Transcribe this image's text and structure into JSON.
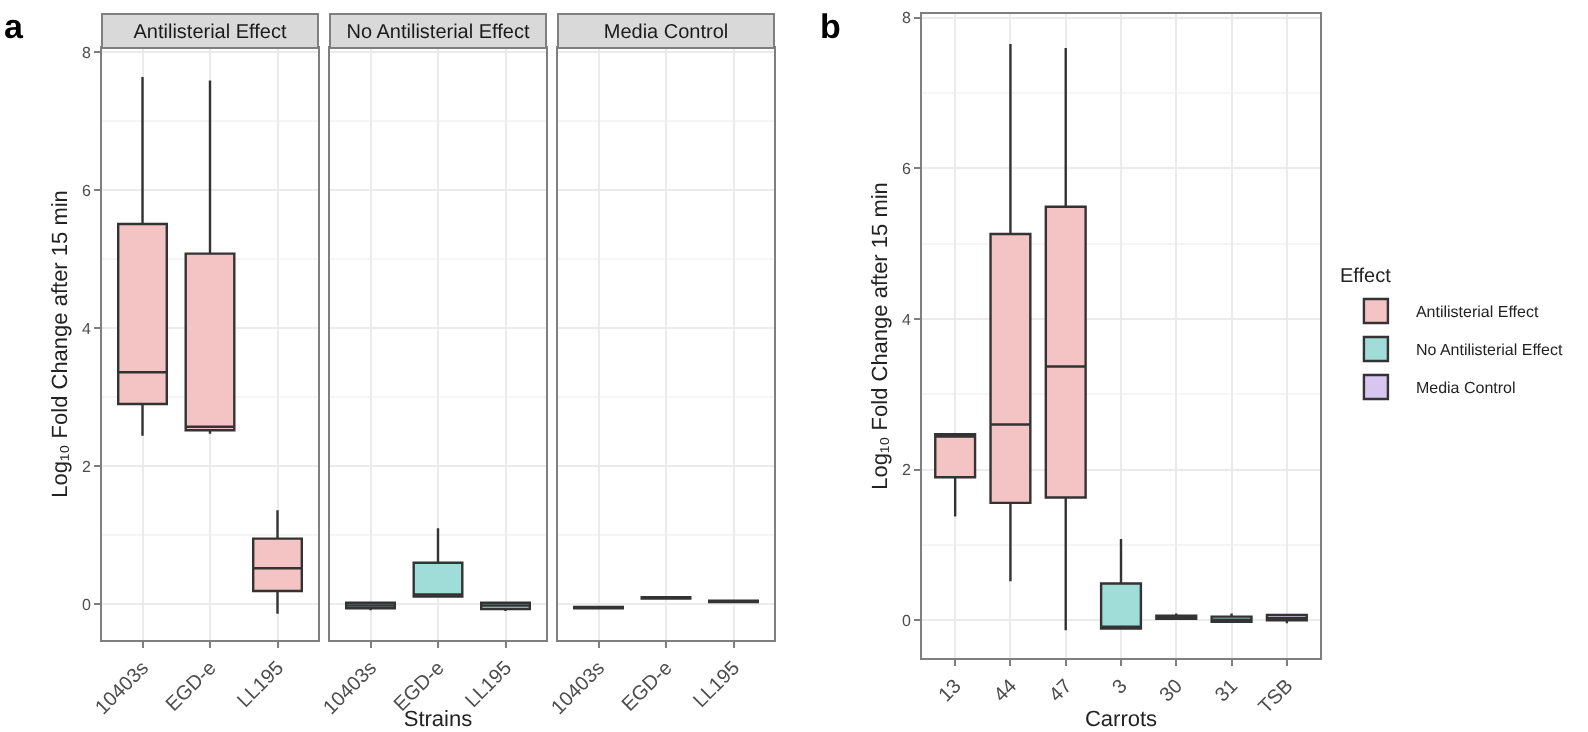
{
  "chart_data": [
    {
      "type": "box",
      "title": "Antilisterial Effect",
      "ylabel": "Log₁₀ Fold Change after 15 min",
      "annotations": [
        "a"
      ],
      "categories": [
        "10403s",
        "EGD-e",
        "LL195"
      ],
      "ylim": [
        -0.52,
        8.06
      ],
      "yticks": [
        0,
        2,
        4,
        6,
        8
      ],
      "grid": true,
      "legend": false,
      "series": [
        {
          "color": "#f4c3c3",
          "boxes": [
            {
              "low": 2.44,
              "q1": 2.9,
              "median": 3.36,
              "q3": 5.51,
              "high": 7.64
            },
            {
              "low": 2.47,
              "q1": 2.52,
              "median": 2.57,
              "q3": 5.08,
              "high": 7.59
            },
            {
              "low": -0.14,
              "q1": 0.19,
              "median": 0.52,
              "q3": 0.95,
              "high": 1.36
            }
          ]
        }
      ]
    },
    {
      "type": "box",
      "title": "No Antilisterial Effect",
      "xlabel": "Strains",
      "categories": [
        "10403s",
        "EGD-e",
        "LL195"
      ],
      "ylim": [
        -0.52,
        8.06
      ],
      "yticks": [
        0,
        2,
        4,
        6,
        8
      ],
      "grid": true,
      "legend": false,
      "tick_labels": "x",
      "series": [
        {
          "color": "#a0dcd8",
          "boxes": [
            {
              "low": -0.09,
              "q1": -0.06,
              "median": -0.02,
              "q3": 0.02,
              "high": 0.03
            },
            {
              "low": 0.11,
              "q1": 0.11,
              "median": 0.13,
              "q3": 0.6,
              "high": 1.1
            },
            {
              "low": -0.1,
              "q1": -0.07,
              "median": -0.02,
              "q3": 0.02,
              "high": 0.03
            }
          ]
        }
      ]
    },
    {
      "type": "box",
      "title": "Media Control",
      "categories": [
        "10403s",
        "EGD-e",
        "LL195"
      ],
      "ylim": [
        -0.52,
        8.06
      ],
      "yticks": [
        0,
        2,
        4,
        6,
        8
      ],
      "grid": true,
      "legend": false,
      "tick_labels": "x",
      "series": [
        {
          "color": "#d9c6f0",
          "boxes": [
            {
              "low": -0.06,
              "q1": -0.06,
              "median": -0.05,
              "q3": -0.04,
              "high": -0.04
            },
            {
              "low": 0.08,
              "q1": 0.08,
              "median": 0.09,
              "q3": 0.1,
              "high": 0.1
            },
            {
              "low": 0.03,
              "q1": 0.03,
              "median": 0.04,
              "q3": 0.05,
              "high": 0.05
            }
          ]
        }
      ]
    },
    {
      "type": "box",
      "annotations": [
        "b"
      ],
      "xlabel": "Carrots",
      "ylabel": "Log₁₀ Fold Change after 15 min",
      "legend_title": "Effect",
      "legend": "right",
      "categories": [
        "13",
        "44",
        "47",
        "3",
        "30",
        "31",
        "TSB"
      ],
      "ylim": [
        -0.5,
        8.05
      ],
      "yticks": [
        0,
        2,
        4,
        6,
        8
      ],
      "grid": true,
      "series": [
        {
          "name": "Antilisterial Effect",
          "color": "#f4c3c3",
          "boxes": [
            {
              "low": 1.38,
              "q1": 1.9,
              "median": 2.44,
              "q3": 2.47,
              "high": 2.47
            },
            {
              "low": 0.52,
              "q1": 1.56,
              "median": 2.6,
              "q3": 5.13,
              "high": 7.65
            },
            {
              "low": -0.13,
              "q1": 1.63,
              "median": 3.37,
              "q3": 5.49,
              "high": 7.6
            },
            null,
            null,
            null,
            null
          ]
        },
        {
          "name": "No Antilisterial Effect",
          "color": "#a0dcd8",
          "boxes": [
            null,
            null,
            null,
            {
              "low": -0.11,
              "q1": -0.11,
              "median": -0.11,
              "q3": 0.49,
              "high": 1.08
            },
            {
              "low": 0.01,
              "q1": 0.02,
              "median": 0.03,
              "q3": 0.06,
              "high": 0.09
            },
            {
              "low": -0.03,
              "q1": -0.02,
              "median": 0.01,
              "q3": 0.05,
              "high": 0.09
            },
            null
          ]
        },
        {
          "name": "Media Control",
          "color": "#d9c6f0",
          "boxes": [
            null,
            null,
            null,
            null,
            null,
            null,
            {
              "low": -0.04,
              "q1": 0,
              "median": 0.03,
              "q3": 0.07,
              "high": 0.07
            }
          ]
        }
      ]
    }
  ]
}
